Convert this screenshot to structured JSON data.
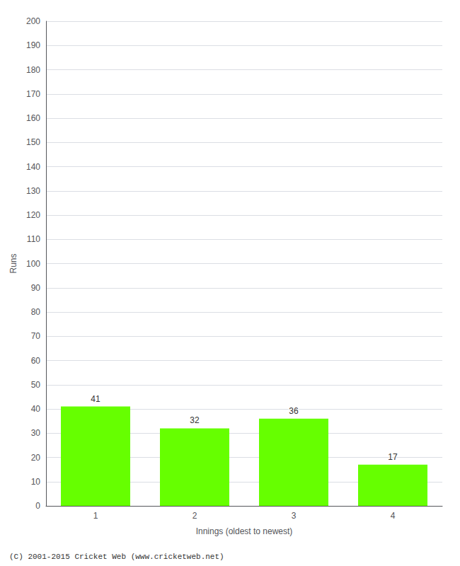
{
  "chart_data": {
    "type": "bar",
    "categories": [
      "1",
      "2",
      "3",
      "4"
    ],
    "values": [
      41,
      32,
      36,
      17
    ],
    "color": "#66ff00",
    "xlabel": "Innings (oldest to newest)",
    "ylabel": "Runs",
    "ylim": [
      0,
      200
    ],
    "yticks": [
      0,
      10,
      20,
      30,
      40,
      50,
      60,
      70,
      80,
      90,
      100,
      110,
      120,
      130,
      140,
      150,
      160,
      170,
      180,
      190,
      200
    ],
    "grid": true,
    "data_labels": true,
    "footer": "(C) 2001-2015 Cricket Web (www.cricketweb.net)"
  }
}
